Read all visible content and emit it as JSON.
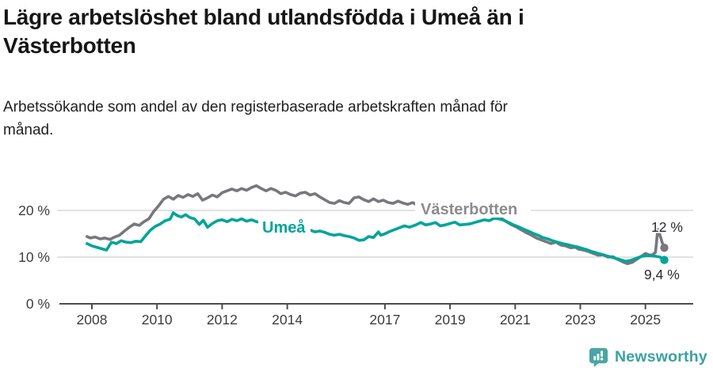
{
  "header": {
    "title": "Lägre arbetslöshet bland utlandsfödda i Umeå än i Västerbotten",
    "subtitle": "Arbetssökande som andel av den registerbaserade arbetskraften månad för månad."
  },
  "footer": {
    "brand": "Newsworthy",
    "brand_color": "#3aa3a1",
    "logo_icon": "newsworthy-chart-bubble-icon"
  },
  "chart_data": {
    "type": "line",
    "title": "Lägre arbetslöshet bland utlandsfödda i Umeå än i Västerbotten",
    "subtitle": "Arbetssökande som andel av den registerbaserade arbetskraften månad för månad.",
    "xlabel": "",
    "ylabel": "",
    "unit": "%",
    "grid": "horizontal-light",
    "legend": "inline-labels",
    "colors": {
      "grid": "#d9d9d9",
      "axis": "#4c4c4c",
      "axis_text": "#3d3d3d"
    },
    "x_axis": {
      "range": [
        2007.8,
        2025.95
      ],
      "ticks": [
        {
          "value": 2008,
          "label": "2008"
        },
        {
          "value": 2010,
          "label": "2010"
        },
        {
          "value": 2012,
          "label": "2012"
        },
        {
          "value": 2014,
          "label": "2014"
        },
        {
          "value": 2017,
          "label": "2017"
        },
        {
          "value": 2019,
          "label": "2019"
        },
        {
          "value": 2021,
          "label": "2021"
        },
        {
          "value": 2023,
          "label": "2023"
        },
        {
          "value": 2025,
          "label": "2025"
        }
      ]
    },
    "y_axis": {
      "range": [
        0,
        27.5
      ],
      "ticks": [
        {
          "value": 0,
          "label": "0 %"
        },
        {
          "value": 10,
          "label": "10 %"
        },
        {
          "value": 20,
          "label": "20 %"
        }
      ]
    },
    "series": [
      {
        "name": "Västerbotten",
        "color": "#77787c",
        "label_color": "#8b8c90",
        "end_label": "12 %",
        "end_value": 12,
        "points": [
          [
            2007.85,
            14.4
          ],
          [
            2007.95,
            14.1
          ],
          [
            2008.1,
            14.3
          ],
          [
            2008.25,
            13.9
          ],
          [
            2008.4,
            14.1
          ],
          [
            2008.55,
            13.8
          ],
          [
            2008.7,
            14.3
          ],
          [
            2008.85,
            14.7
          ],
          [
            2009.0,
            15.6
          ],
          [
            2009.15,
            16.4
          ],
          [
            2009.3,
            17.1
          ],
          [
            2009.45,
            16.8
          ],
          [
            2009.6,
            17.6
          ],
          [
            2009.75,
            18.2
          ],
          [
            2009.9,
            19.8
          ],
          [
            2010.05,
            21.0
          ],
          [
            2010.2,
            22.4
          ],
          [
            2010.35,
            23.0
          ],
          [
            2010.5,
            22.4
          ],
          [
            2010.65,
            23.2
          ],
          [
            2010.8,
            22.8
          ],
          [
            2010.95,
            23.4
          ],
          [
            2011.1,
            23.0
          ],
          [
            2011.25,
            23.6
          ],
          [
            2011.4,
            22.2
          ],
          [
            2011.55,
            22.7
          ],
          [
            2011.7,
            23.3
          ],
          [
            2011.85,
            22.9
          ],
          [
            2012.0,
            23.8
          ],
          [
            2012.15,
            24.2
          ],
          [
            2012.3,
            24.6
          ],
          [
            2012.45,
            24.2
          ],
          [
            2012.6,
            24.7
          ],
          [
            2012.75,
            24.3
          ],
          [
            2012.9,
            24.9
          ],
          [
            2013.05,
            25.3
          ],
          [
            2013.2,
            24.7
          ],
          [
            2013.35,
            24.2
          ],
          [
            2013.5,
            24.7
          ],
          [
            2013.65,
            24.3
          ],
          [
            2013.8,
            23.6
          ],
          [
            2013.95,
            23.9
          ],
          [
            2014.1,
            23.4
          ],
          [
            2014.25,
            23.1
          ],
          [
            2014.4,
            23.7
          ],
          [
            2014.55,
            23.9
          ],
          [
            2014.7,
            23.3
          ],
          [
            2014.85,
            23.6
          ],
          [
            2015.0,
            22.9
          ],
          [
            2015.15,
            22.3
          ],
          [
            2015.3,
            21.7
          ],
          [
            2015.45,
            21.5
          ],
          [
            2015.6,
            22.1
          ],
          [
            2015.75,
            21.7
          ],
          [
            2015.9,
            21.5
          ],
          [
            2016.05,
            22.7
          ],
          [
            2016.2,
            22.9
          ],
          [
            2016.35,
            22.3
          ],
          [
            2016.5,
            21.9
          ],
          [
            2016.65,
            22.5
          ],
          [
            2016.8,
            21.9
          ],
          [
            2016.95,
            22.2
          ],
          [
            2017.1,
            21.7
          ],
          [
            2017.25,
            21.5
          ],
          [
            2017.4,
            22.0
          ],
          [
            2017.55,
            21.6
          ],
          [
            2017.7,
            21.3
          ],
          [
            2017.85,
            21.7
          ],
          [
            2018.0,
            21.1
          ],
          [
            2018.3,
            21.3
          ],
          [
            2018.6,
            20.9
          ],
          [
            2018.9,
            20.5
          ],
          [
            2019.2,
            20.2
          ],
          [
            2019.5,
            19.8
          ],
          [
            2019.8,
            19.4
          ],
          [
            2020.1,
            19.0
          ],
          [
            2020.4,
            18.6
          ],
          [
            2020.6,
            18.2
          ],
          [
            2020.75,
            17.5
          ],
          [
            2020.9,
            16.9
          ],
          [
            2021.05,
            16.4
          ],
          [
            2021.2,
            15.8
          ],
          [
            2021.35,
            15.2
          ],
          [
            2021.5,
            14.7
          ],
          [
            2021.65,
            14.1
          ],
          [
            2021.8,
            13.7
          ],
          [
            2021.95,
            13.3
          ],
          [
            2022.1,
            12.9
          ],
          [
            2022.25,
            13.2
          ],
          [
            2022.4,
            12.6
          ],
          [
            2022.55,
            12.4
          ],
          [
            2022.7,
            12.0
          ],
          [
            2022.85,
            12.1
          ],
          [
            2022.95,
            11.7
          ],
          [
            2023.1,
            11.5
          ],
          [
            2023.25,
            11.2
          ],
          [
            2023.4,
            10.8
          ],
          [
            2023.55,
            10.4
          ],
          [
            2023.7,
            10.5
          ],
          [
            2023.85,
            10.0
          ],
          [
            2024.0,
            10.1
          ],
          [
            2024.15,
            9.5
          ],
          [
            2024.3,
            9.0
          ],
          [
            2024.45,
            8.6
          ],
          [
            2024.6,
            8.9
          ],
          [
            2024.75,
            9.6
          ],
          [
            2024.9,
            10.3
          ],
          [
            2025.0,
            10.8
          ],
          [
            2025.1,
            10.5
          ],
          [
            2025.2,
            10.4
          ],
          [
            2025.31,
            11.0
          ],
          [
            2025.38,
            15.9
          ],
          [
            2025.46,
            14.4
          ],
          [
            2025.52,
            13.0
          ],
          [
            2025.58,
            12.0
          ]
        ]
      },
      {
        "name": "Umeå",
        "color": "#00a49a",
        "label_color": "#00a49a",
        "end_label": "9,4 %",
        "end_value": 9.4,
        "points": [
          [
            2007.85,
            12.9
          ],
          [
            2008.0,
            12.4
          ],
          [
            2008.15,
            12.1
          ],
          [
            2008.3,
            11.8
          ],
          [
            2008.45,
            11.5
          ],
          [
            2008.6,
            13.2
          ],
          [
            2008.75,
            12.9
          ],
          [
            2008.9,
            13.5
          ],
          [
            2009.05,
            13.2
          ],
          [
            2009.2,
            13.1
          ],
          [
            2009.35,
            13.4
          ],
          [
            2009.5,
            13.3
          ],
          [
            2009.65,
            14.6
          ],
          [
            2009.8,
            15.8
          ],
          [
            2009.95,
            16.6
          ],
          [
            2010.1,
            17.1
          ],
          [
            2010.25,
            17.8
          ],
          [
            2010.4,
            18.1
          ],
          [
            2010.5,
            19.5
          ],
          [
            2010.62,
            18.9
          ],
          [
            2010.75,
            18.6
          ],
          [
            2010.88,
            19.1
          ],
          [
            2011.0,
            18.5
          ],
          [
            2011.15,
            18.2
          ],
          [
            2011.3,
            17.0
          ],
          [
            2011.42,
            17.9
          ],
          [
            2011.55,
            16.4
          ],
          [
            2011.7,
            17.2
          ],
          [
            2011.85,
            17.8
          ],
          [
            2012.0,
            18.0
          ],
          [
            2012.15,
            17.6
          ],
          [
            2012.3,
            18.1
          ],
          [
            2012.45,
            17.8
          ],
          [
            2012.6,
            18.2
          ],
          [
            2012.75,
            17.7
          ],
          [
            2012.9,
            18.0
          ],
          [
            2013.05,
            17.6
          ],
          [
            2013.25,
            17.3
          ],
          [
            2013.5,
            16.8
          ],
          [
            2013.75,
            16.5
          ],
          [
            2014.0,
            16.2
          ],
          [
            2014.25,
            16.0
          ],
          [
            2014.5,
            15.9
          ],
          [
            2014.7,
            15.8
          ],
          [
            2014.85,
            15.4
          ],
          [
            2015.0,
            15.6
          ],
          [
            2015.15,
            15.3
          ],
          [
            2015.3,
            14.9
          ],
          [
            2015.45,
            14.7
          ],
          [
            2015.6,
            14.9
          ],
          [
            2015.75,
            14.6
          ],
          [
            2015.9,
            14.4
          ],
          [
            2016.05,
            14.1
          ],
          [
            2016.2,
            13.6
          ],
          [
            2016.35,
            13.7
          ],
          [
            2016.5,
            14.4
          ],
          [
            2016.65,
            14.2
          ],
          [
            2016.8,
            15.4
          ],
          [
            2016.87,
            14.7
          ],
          [
            2017.0,
            15.0
          ],
          [
            2017.15,
            15.5
          ],
          [
            2017.3,
            15.9
          ],
          [
            2017.45,
            16.3
          ],
          [
            2017.6,
            16.7
          ],
          [
            2017.75,
            16.4
          ],
          [
            2017.95,
            16.9
          ],
          [
            2018.1,
            17.4
          ],
          [
            2018.25,
            16.9
          ],
          [
            2018.4,
            17.1
          ],
          [
            2018.55,
            17.4
          ],
          [
            2018.7,
            16.7
          ],
          [
            2018.85,
            16.9
          ],
          [
            2019.0,
            17.2
          ],
          [
            2019.15,
            17.5
          ],
          [
            2019.3,
            16.9
          ],
          [
            2019.45,
            17.0
          ],
          [
            2019.6,
            17.1
          ],
          [
            2019.75,
            17.4
          ],
          [
            2019.9,
            17.7
          ],
          [
            2020.05,
            18.0
          ],
          [
            2020.2,
            17.8
          ],
          [
            2020.35,
            18.3
          ],
          [
            2020.5,
            18.2
          ],
          [
            2020.65,
            17.9
          ],
          [
            2020.8,
            17.4
          ],
          [
            2020.95,
            16.9
          ],
          [
            2021.1,
            16.5
          ],
          [
            2021.25,
            16.0
          ],
          [
            2021.4,
            15.6
          ],
          [
            2021.55,
            15.1
          ],
          [
            2021.7,
            14.7
          ],
          [
            2021.85,
            14.2
          ],
          [
            2022.0,
            13.9
          ],
          [
            2022.15,
            13.5
          ],
          [
            2022.3,
            13.2
          ],
          [
            2022.45,
            12.9
          ],
          [
            2022.6,
            12.7
          ],
          [
            2022.75,
            12.4
          ],
          [
            2022.9,
            12.2
          ],
          [
            2023.05,
            11.9
          ],
          [
            2023.2,
            11.6
          ],
          [
            2023.35,
            11.2
          ],
          [
            2023.5,
            10.9
          ],
          [
            2023.65,
            10.6
          ],
          [
            2023.8,
            10.3
          ],
          [
            2023.95,
            10.0
          ],
          [
            2024.1,
            9.7
          ],
          [
            2024.25,
            9.4
          ],
          [
            2024.4,
            9.1
          ],
          [
            2024.55,
            9.3
          ],
          [
            2024.7,
            9.7
          ],
          [
            2024.85,
            10.1
          ],
          [
            2025.0,
            10.3
          ],
          [
            2025.15,
            10.3
          ],
          [
            2025.3,
            10.2
          ],
          [
            2025.45,
            10.0
          ],
          [
            2025.58,
            9.4
          ]
        ]
      }
    ]
  }
}
